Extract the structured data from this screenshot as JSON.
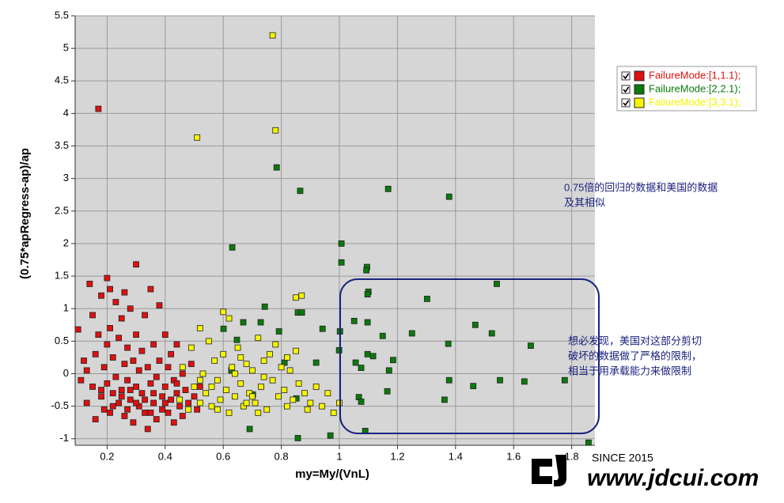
{
  "chart_data": {
    "type": "scatter",
    "x_label": "my=My/(VnL)",
    "y_label": "(0.75*apRegress-ap)/ap",
    "xlim": [
      0.09,
      1.88
    ],
    "ylim": [
      -1.1,
      5.5
    ],
    "xticks": [
      0.2,
      0.4,
      0.6,
      0.8,
      1,
      1.2,
      1.4,
      1.6,
      1.8
    ],
    "yticks": [
      -1,
      -0.5,
      0,
      0.5,
      1,
      1.5,
      2,
      2.5,
      3,
      3.5,
      4,
      4.5,
      5,
      5.5
    ],
    "grid": true,
    "legend": "upper right",
    "annotations": [
      {
        "lines": [
          "0.75倍的回归的数据和美国的数据",
          "及其相似"
        ]
      },
      {
        "lines": [
          "想必发现，美国对这部分剪切",
          "破坏的数据做了严格的限制，",
          "相当于用承载能力来做限制"
        ]
      }
    ],
    "watermark": {
      "since": "SINCE 2015",
      "url": "www.jdcui.com"
    },
    "series": [
      {
        "name": "FailureMode:[1,1.1);",
        "color": "#e01010",
        "x": [
          0.1,
          0.11,
          0.12,
          0.13,
          0.14,
          0.15,
          0.15,
          0.16,
          0.16,
          0.17,
          0.17,
          0.18,
          0.18,
          0.19,
          0.19,
          0.2,
          0.2,
          0.2,
          0.21,
          0.21,
          0.21,
          0.22,
          0.22,
          0.23,
          0.23,
          0.24,
          0.24,
          0.25,
          0.25,
          0.26,
          0.26,
          0.26,
          0.27,
          0.27,
          0.28,
          0.28,
          0.29,
          0.29,
          0.3,
          0.3,
          0.3,
          0.31,
          0.31,
          0.32,
          0.32,
          0.33,
          0.33,
          0.34,
          0.34,
          0.35,
          0.35,
          0.36,
          0.36,
          0.37,
          0.37,
          0.38,
          0.38,
          0.39,
          0.39,
          0.4,
          0.4,
          0.41,
          0.41,
          0.42,
          0.42,
          0.43,
          0.43,
          0.44,
          0.44,
          0.45,
          0.46,
          0.46,
          0.47,
          0.48,
          0.49,
          0.5,
          0.51,
          0.52,
          0.22,
          0.25,
          0.28,
          0.33,
          0.36,
          0.4,
          0.18,
          0.13,
          0.3,
          0.35,
          0.27,
          0.44
        ],
        "y": [
          0.68,
          -0.1,
          0.2,
          -0.45,
          1.38,
          0.9,
          -0.2,
          0.3,
          -0.7,
          4.07,
          0.6,
          1.2,
          -0.35,
          0.1,
          -0.55,
          1.47,
          0.45,
          -0.15,
          1.3,
          0.7,
          -0.6,
          0.25,
          -0.3,
          1.1,
          -0.05,
          0.55,
          -0.45,
          0.85,
          -0.25,
          1.25,
          0.15,
          -0.65,
          0.4,
          -0.1,
          1.0,
          -0.4,
          0.2,
          -0.75,
          1.68,
          0.6,
          -0.2,
          0.05,
          -0.5,
          0.35,
          -0.3,
          0.9,
          -0.6,
          0.1,
          -0.85,
          1.3,
          -0.15,
          0.45,
          -0.45,
          -0.05,
          -0.7,
          1.05,
          0.2,
          -0.35,
          -0.55,
          0.6,
          -0.2,
          -0.6,
          0.1,
          -0.4,
          0.3,
          -0.1,
          -0.75,
          0.45,
          -0.3,
          -0.5,
          0.0,
          -0.65,
          -0.25,
          -0.45,
          0.15,
          -0.35,
          -0.55,
          -0.2,
          -0.5,
          -0.35,
          -0.25,
          -0.4,
          -0.3,
          -0.45,
          -0.25,
          0.05,
          -0.45,
          -0.6,
          -0.55,
          -0.15
        ]
      },
      {
        "name": "FailureMode:[2,2.1);",
        "color": "#0a7a0a",
        "x": [
          0.784,
          0.865,
          1.168,
          1.378,
          1.007,
          1.007,
          0.631,
          1.095,
          1.093,
          1.542,
          1.302,
          1.1,
          1.097,
          0.743,
          0.857,
          0.871,
          1.468,
          1.097,
          1.051,
          0.729,
          0.669,
          0.792,
          0.942,
          1.002,
          1.525,
          1.25,
          1.149,
          1.375,
          1.659,
          0.647,
          0.601,
          1.097,
          1.116,
          1.185,
          1.056,
          0.92,
          0.999,
          1.171,
          1.075,
          1.378,
          1.553,
          1.637,
          1.776,
          1.461,
          1.165,
          1.067,
          1.075,
          1.362,
          1.089,
          0.857,
          0.969,
          0.691,
          1.858,
          0.702,
          0.628,
          0.811,
          0.852
        ],
        "y": [
          3.17,
          2.81,
          2.84,
          2.72,
          2.0,
          1.71,
          1.94,
          1.64,
          1.59,
          1.38,
          1.15,
          1.26,
          1.22,
          1.03,
          0.94,
          0.94,
          0.75,
          0.79,
          0.81,
          0.79,
          0.79,
          0.65,
          0.69,
          0.65,
          0.62,
          0.62,
          0.58,
          0.46,
          0.43,
          0.52,
          0.69,
          0.3,
          0.27,
          0.21,
          0.17,
          0.17,
          0.36,
          0.05,
          0.09,
          -0.1,
          -0.1,
          -0.12,
          -0.1,
          -0.19,
          -0.27,
          -0.36,
          -0.43,
          -0.4,
          -0.88,
          -0.99,
          -0.95,
          -0.85,
          -1.06,
          -0.32,
          0.05,
          0.17,
          -0.38
        ]
      },
      {
        "name": "FailureMode:[3,3.1);",
        "color": "#f5f500",
        "x": [
          0.45,
          0.46,
          0.48,
          0.49,
          0.5,
          0.51,
          0.52,
          0.52,
          0.53,
          0.54,
          0.55,
          0.56,
          0.57,
          0.58,
          0.59,
          0.6,
          0.6,
          0.61,
          0.62,
          0.62,
          0.63,
          0.64,
          0.65,
          0.66,
          0.67,
          0.68,
          0.69,
          0.7,
          0.71,
          0.72,
          0.73,
          0.74,
          0.75,
          0.76,
          0.77,
          0.77,
          0.78,
          0.78,
          0.79,
          0.8,
          0.81,
          0.82,
          0.83,
          0.84,
          0.85,
          0.85,
          0.86,
          0.87,
          0.88,
          0.89,
          0.9,
          0.92,
          0.94,
          0.96,
          0.98,
          1.0,
          0.56,
          0.64,
          0.7,
          0.74,
          0.66,
          0.58,
          0.82,
          0.72,
          0.68,
          0.52
        ],
        "y": [
          -0.4,
          0.1,
          -0.55,
          0.4,
          -0.2,
          3.63,
          -0.45,
          0.7,
          0.0,
          -0.3,
          0.5,
          -0.5,
          0.2,
          -0.1,
          -0.4,
          0.95,
          0.3,
          -0.25,
          0.85,
          -0.6,
          0.1,
          -0.35,
          0.4,
          -0.15,
          -0.5,
          0.15,
          -0.3,
          0.05,
          -0.45,
          0.55,
          -0.2,
          0.2,
          -0.55,
          0.3,
          5.2,
          -0.1,
          3.74,
          0.45,
          -0.35,
          0.1,
          -0.25,
          -0.5,
          0.05,
          -0.4,
          1.17,
          0.35,
          -0.15,
          1.2,
          -0.3,
          -0.55,
          -0.45,
          -0.2,
          -0.5,
          -0.3,
          -0.6,
          -0.45,
          -0.2,
          0.0,
          -0.35,
          -0.05,
          0.25,
          -0.55,
          0.25,
          -0.6,
          -0.45,
          -0.1
        ]
      }
    ]
  }
}
